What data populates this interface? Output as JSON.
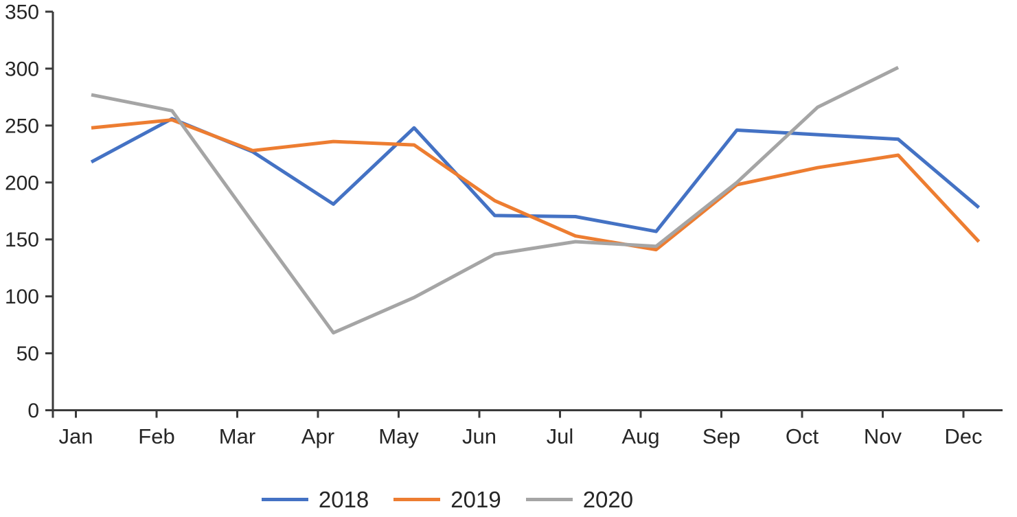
{
  "chart_data": {
    "type": "line",
    "categories": [
      "Jan",
      "Feb",
      "Mar",
      "Apr",
      "May",
      "Jun",
      "Jul",
      "Aug",
      "Sep",
      "Oct",
      "Nov",
      "Dec"
    ],
    "series": [
      {
        "name": "2018",
        "color": "#4472C4",
        "values": [
          218,
          256,
          227,
          181,
          248,
          171,
          170,
          157,
          246,
          242,
          238,
          178
        ]
      },
      {
        "name": "2019",
        "color": "#ED7D31",
        "values": [
          248,
          255,
          228,
          236,
          233,
          184,
          153,
          141,
          198,
          213,
          224,
          148
        ]
      },
      {
        "name": "2020",
        "color": "#A5A5A5",
        "values": [
          277,
          263,
          165,
          68,
          99,
          137,
          148,
          144,
          200,
          266,
          301,
          null
        ]
      }
    ],
    "ylim": [
      0,
      350
    ],
    "yticks": [
      0,
      50,
      100,
      150,
      200,
      250,
      300,
      350
    ],
    "grid": false,
    "legend_position": "bottom"
  },
  "legend": {
    "entries": [
      {
        "label": "2018",
        "color": "#4472C4"
      },
      {
        "label": "2019",
        "color": "#ED7D31"
      },
      {
        "label": "2020",
        "color": "#A5A5A5"
      }
    ]
  },
  "colors": {
    "axis": "#3a3a3a",
    "text": "#262626",
    "background": "#ffffff"
  }
}
